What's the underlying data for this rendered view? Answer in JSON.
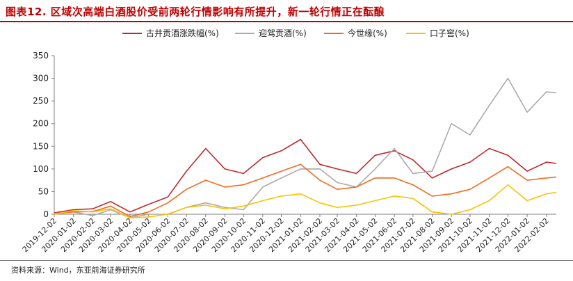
{
  "header": {
    "title": "图表12. 区域次高端白酒股价受前两轮行情影响有所提升，新一轮行情正在酝酿"
  },
  "footer": {
    "source": "资料来源：Wind，东亚前海证券研究所"
  },
  "colors": {
    "title": "#c00000",
    "gujing": "#c0272d",
    "yingjia": "#aaaaaa",
    "jinshiyuan": "#f26b1d",
    "kouzijiao": "#f5c400"
  },
  "chart_data": {
    "type": "line",
    "title": "",
    "xlabel": "",
    "ylabel": "",
    "ylim": [
      0,
      350
    ],
    "yticks": [
      0,
      50,
      100,
      150,
      200,
      250,
      300,
      350
    ],
    "grid": false,
    "legend_position": "top",
    "x_tick_labels": [
      "2019-12-02",
      "2020-01-02",
      "2020-02-02",
      "2020-03-02",
      "2020-04-02",
      "2020-05-02",
      "2020-06-02",
      "2020-07-02",
      "2020-08-02",
      "2020-09-02",
      "2020-10-02",
      "2020-11-02",
      "2020-12-02",
      "2021-01-02",
      "2021-02-02",
      "2021-03-02",
      "2021-04-02",
      "2021-05-02",
      "2021-06-02",
      "2021-07-02",
      "2021-08-02",
      "2021-09-02",
      "2021-10-02",
      "2021-11-02",
      "2021-12-02",
      "2022-01-02",
      "2022-02-02"
    ],
    "x": [
      "2019-12-02",
      "2020-01-02",
      "2020-02-02",
      "2020-03-02",
      "2020-04-02",
      "2020-05-02",
      "2020-06-02",
      "2020-07-02",
      "2020-08-02",
      "2020-09-02",
      "2020-10-02",
      "2020-11-02",
      "2020-12-02",
      "2021-01-02",
      "2021-02-02",
      "2021-03-02",
      "2021-04-02",
      "2021-05-02",
      "2021-06-02",
      "2021-07-02",
      "2021-08-02",
      "2021-09-02",
      "2021-10-02",
      "2021-11-02",
      "2021-12-02",
      "2022-01-02",
      "2022-02-02",
      "2022-02-18"
    ],
    "series": [
      {
        "name": "古井贡酒涨跌幅(%)",
        "color": "#c0272d",
        "values": [
          3,
          10,
          12,
          28,
          5,
          22,
          38,
          95,
          145,
          100,
          90,
          125,
          140,
          165,
          110,
          100,
          90,
          130,
          140,
          120,
          80,
          100,
          115,
          145,
          130,
          95,
          115,
          112
        ]
      },
      {
        "name": "迎驾贡酒(%)",
        "color": "#aaaaaa",
        "values": [
          0,
          5,
          -3,
          10,
          -8,
          0,
          0,
          15,
          25,
          15,
          10,
          60,
          80,
          100,
          100,
          70,
          60,
          100,
          145,
          90,
          95,
          200,
          175,
          240,
          300,
          225,
          270,
          268
        ]
      },
      {
        "name": "今世缘(%)",
        "color": "#f26b1d",
        "values": [
          2,
          5,
          6,
          18,
          -5,
          5,
          25,
          55,
          75,
          60,
          65,
          80,
          95,
          110,
          75,
          55,
          60,
          80,
          80,
          65,
          40,
          45,
          55,
          80,
          105,
          75,
          80,
          82
        ]
      },
      {
        "name": "口子窖(%)",
        "color": "#f5c400",
        "values": [
          0,
          8,
          5,
          12,
          -8,
          -6,
          0,
          15,
          20,
          12,
          18,
          30,
          40,
          45,
          25,
          15,
          20,
          30,
          40,
          35,
          5,
          0,
          10,
          30,
          65,
          30,
          45,
          48
        ]
      }
    ]
  }
}
